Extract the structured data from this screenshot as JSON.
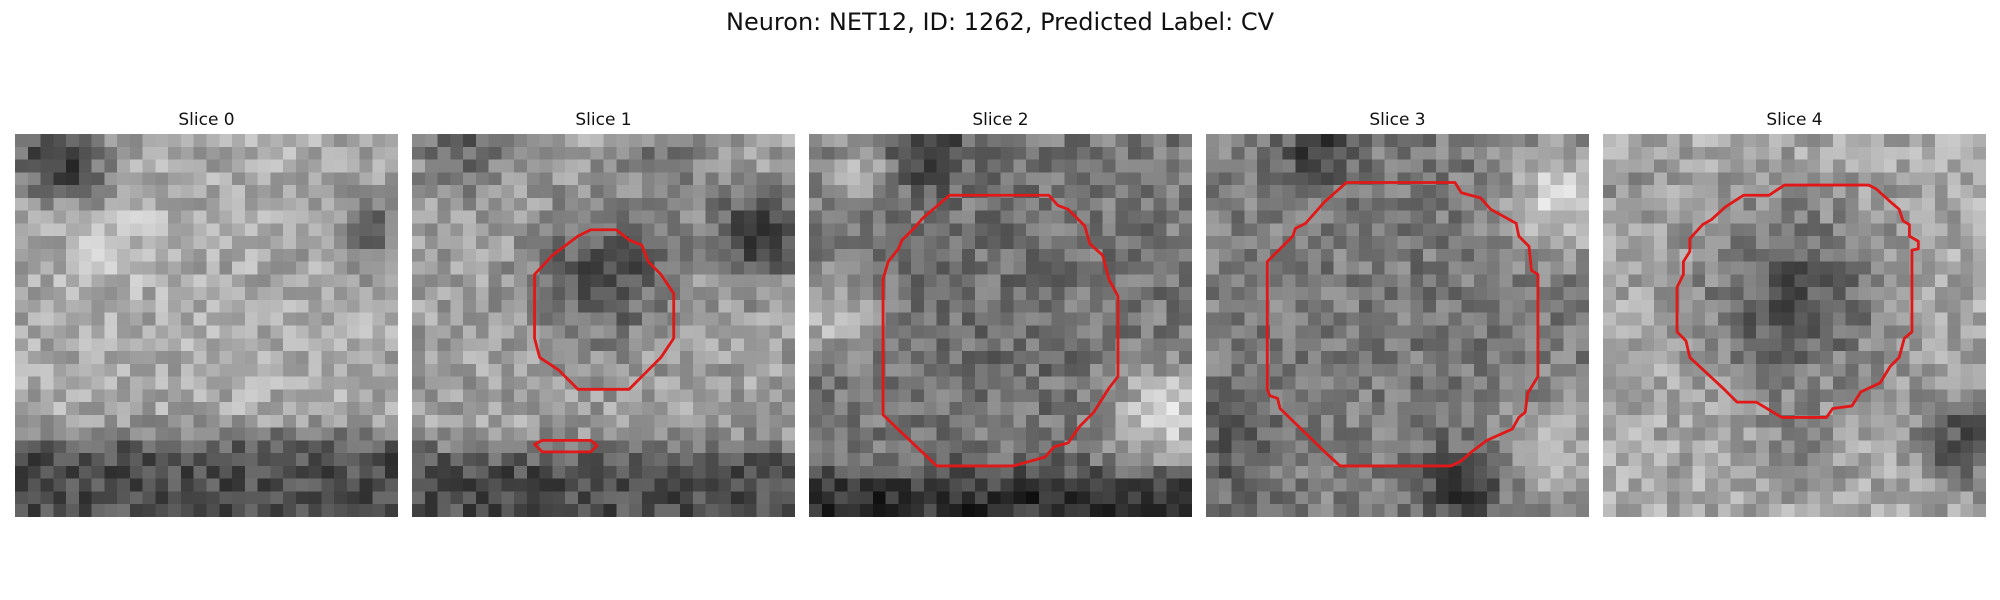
{
  "figure": {
    "title": "Neuron: NET12, ID: 1262, Predicted Label: CV"
  },
  "panels": [
    {
      "title": "Slice 0"
    },
    {
      "title": "Slice 1"
    },
    {
      "title": "Slice 2"
    },
    {
      "title": "Slice 3"
    },
    {
      "title": "Slice 4"
    }
  ],
  "colors": {
    "contour": "#e01818",
    "background": "#ffffff"
  }
}
